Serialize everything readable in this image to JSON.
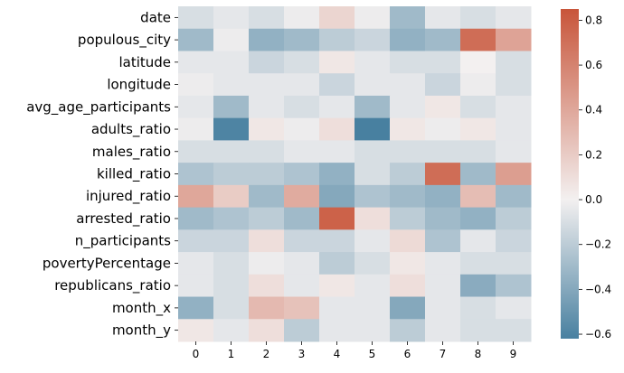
{
  "chart_data": {
    "type": "heatmap",
    "rows": [
      "date",
      "populous_city",
      "latitude",
      "longitude",
      "avg_age_participants",
      "adults_ratio",
      "males_ratio",
      "killed_ratio",
      "injured_ratio",
      "arrested_ratio",
      "n_participants",
      "povertyPercentage",
      "republicans_ratio",
      "month_x",
      "month_y"
    ],
    "columns": [
      "0",
      "1",
      "2",
      "3",
      "4",
      "5",
      "6",
      "7",
      "8",
      "9"
    ],
    "values": [
      [
        -0.1,
        -0.05,
        -0.1,
        -0.02,
        0.15,
        -0.02,
        -0.3,
        -0.05,
        -0.1,
        -0.05
      ],
      [
        -0.3,
        -0.02,
        -0.35,
        -0.3,
        -0.2,
        -0.15,
        -0.35,
        -0.3,
        0.72,
        0.42
      ],
      [
        -0.05,
        -0.05,
        -0.15,
        -0.1,
        0.05,
        -0.05,
        -0.1,
        -0.1,
        0.0,
        -0.1
      ],
      [
        -0.02,
        -0.05,
        -0.05,
        -0.05,
        -0.15,
        -0.05,
        -0.05,
        -0.15,
        -0.02,
        -0.1
      ],
      [
        -0.05,
        -0.3,
        -0.05,
        -0.1,
        -0.05,
        -0.3,
        -0.05,
        0.05,
        -0.1,
        -0.05
      ],
      [
        -0.02,
        -0.6,
        0.05,
        -0.02,
        0.1,
        -0.62,
        0.05,
        -0.02,
        0.05,
        -0.05
      ],
      [
        -0.1,
        -0.1,
        -0.1,
        -0.05,
        -0.05,
        -0.1,
        -0.1,
        -0.1,
        -0.1,
        -0.05
      ],
      [
        -0.25,
        -0.2,
        -0.2,
        -0.25,
        -0.35,
        -0.1,
        -0.2,
        0.72,
        -0.3,
        0.45
      ],
      [
        0.4,
        0.2,
        -0.3,
        0.38,
        -0.4,
        -0.25,
        -0.3,
        -0.35,
        0.28,
        -0.3
      ],
      [
        -0.3,
        -0.25,
        -0.2,
        -0.3,
        0.78,
        0.1,
        -0.2,
        -0.3,
        -0.35,
        -0.2
      ],
      [
        -0.15,
        -0.15,
        0.1,
        -0.15,
        -0.15,
        -0.05,
        0.12,
        -0.25,
        -0.05,
        -0.15
      ],
      [
        -0.05,
        -0.1,
        -0.02,
        -0.05,
        -0.2,
        -0.1,
        0.05,
        -0.05,
        -0.1,
        -0.1
      ],
      [
        -0.05,
        -0.1,
        0.1,
        -0.05,
        0.05,
        -0.05,
        0.1,
        -0.05,
        -0.38,
        -0.25
      ],
      [
        -0.35,
        -0.1,
        0.3,
        0.25,
        -0.05,
        -0.05,
        -0.4,
        -0.05,
        -0.1,
        -0.05
      ],
      [
        0.05,
        -0.05,
        0.1,
        -0.2,
        -0.05,
        -0.05,
        -0.2,
        -0.05,
        -0.1,
        -0.1
      ]
    ],
    "vmin": -0.62,
    "vmax": 0.85,
    "colormap": {
      "low": "#4880a0",
      "mid": "#f3f0f0",
      "high": "#c8553a"
    },
    "colorbar": {
      "ticks": [
        -0.6,
        -0.4,
        -0.2,
        0.0,
        0.2,
        0.4,
        0.6,
        0.8
      ],
      "placement": "right"
    },
    "grid": false
  }
}
